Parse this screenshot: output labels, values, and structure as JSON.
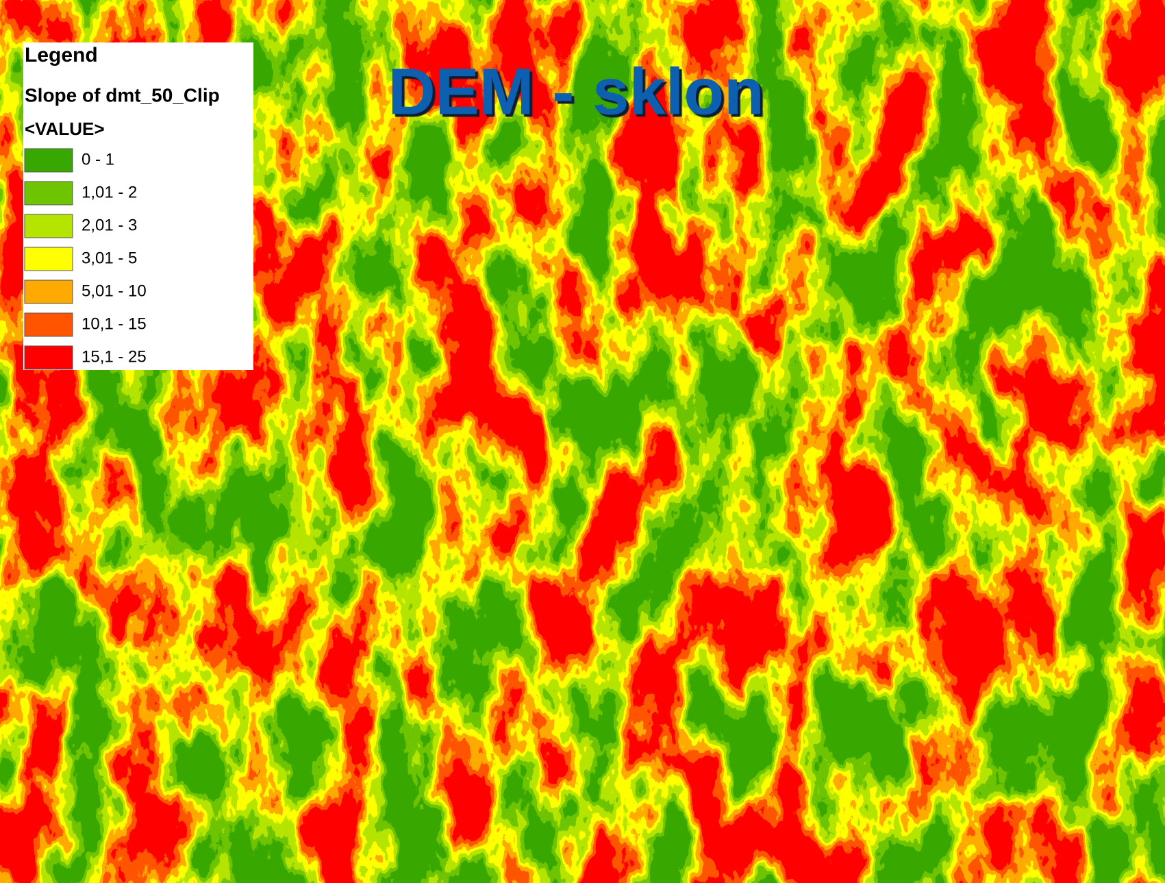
{
  "title": "DEM - sklon",
  "legend": {
    "heading": "Legend",
    "layer": "Slope of dmt_50_Clip",
    "field": "<VALUE>",
    "classes": [
      {
        "label": "0 - 1",
        "color": "#38a800"
      },
      {
        "label": "1,01 - 2",
        "color": "#6fc400"
      },
      {
        "label": "2,01 - 3",
        "color": "#b4e400"
      },
      {
        "label": "3,01 - 5",
        "color": "#ffff00"
      },
      {
        "label": "5,01 - 10",
        "color": "#ffaa00"
      },
      {
        "label": "10,1 - 15",
        "color": "#ff5500"
      },
      {
        "label": "15,1 - 25",
        "color": "#ff0000"
      }
    ]
  }
}
